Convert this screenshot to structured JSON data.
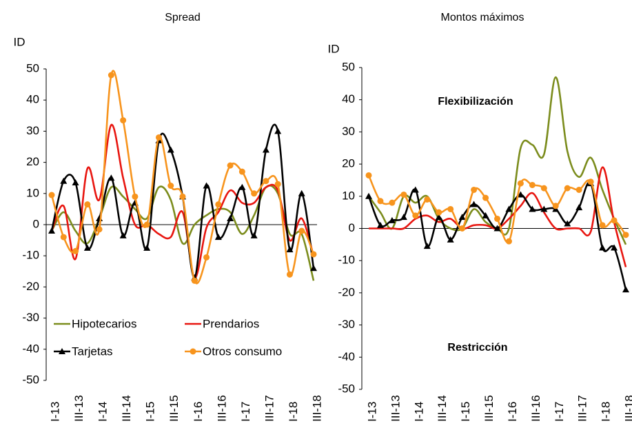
{
  "chart_data": [
    {
      "type": "line",
      "title": "Spread",
      "y_label": "ID",
      "categories": [
        "I-13",
        null,
        "III-13",
        null,
        "I-14",
        null,
        "III-14",
        null,
        "I-15",
        null,
        "III-15",
        null,
        "I-16",
        null,
        "III-16",
        null,
        "I-17",
        null,
        "III-17",
        null,
        "I-18",
        null,
        "III-18"
      ],
      "series": [
        {
          "name": "Hipotecarios",
          "color": "#7b8c1c",
          "marker": "none",
          "values": [
            -2,
            4,
            -2,
            -6,
            2,
            12,
            9,
            5,
            2,
            12,
            8,
            -6,
            0,
            3,
            5,
            4,
            -3,
            3,
            12,
            10,
            -3,
            -3,
            -18
          ]
        },
        {
          "name": "Prendarios",
          "color": "#e8150f",
          "marker": "none",
          "values": [
            -2,
            6,
            -11,
            18,
            8,
            32,
            15,
            0,
            0,
            -3,
            -4,
            4,
            -17,
            -1,
            4,
            11,
            7,
            7,
            12,
            11,
            -5,
            2,
            -10
          ]
        },
        {
          "name": "Tarjetas",
          "color": "#000000",
          "marker": "triangle",
          "values": [
            -2,
            14,
            13.5,
            -7.5,
            2,
            15,
            -3.5,
            7,
            -7.5,
            27,
            24,
            9,
            -17,
            12.5,
            -4,
            2,
            12,
            -3.5,
            24,
            30,
            -8,
            10,
            -14
          ]
        },
        {
          "name": "Otros consumo",
          "color": "#f7941d",
          "marker": "circle",
          "values": [
            9.5,
            -4,
            -8.5,
            6.5,
            -1.5,
            48,
            33.5,
            9,
            0,
            28,
            12.5,
            9,
            -18,
            -10.5,
            6.5,
            19,
            17,
            10,
            14,
            13,
            -16,
            -2,
            -9.5
          ]
        }
      ],
      "ylim": [
        -50,
        50
      ],
      "yticks": [
        -50,
        -40,
        -30,
        -20,
        -10,
        0,
        10,
        20,
        30,
        40,
        50
      ],
      "legend": "lower left"
    },
    {
      "type": "line",
      "title": "Montos máximos",
      "y_label": "ID",
      "categories": [
        "I-13",
        null,
        "III-13",
        null,
        "I-14",
        null,
        "III-14",
        null,
        "I-15",
        null,
        "III-15",
        null,
        "I-16",
        null,
        "III-16",
        null,
        "I-17",
        null,
        "III-17",
        null,
        "I-18",
        null,
        "III-18"
      ],
      "series": [
        {
          "name": "Hipotecarios",
          "color": "#7b8c1c",
          "marker": "none",
          "values": [
            10,
            5,
            0,
            10,
            8,
            10,
            3,
            0,
            0,
            6,
            2,
            0,
            0,
            25,
            26,
            23,
            47,
            24,
            16,
            22,
            12,
            3,
            -5
          ]
        },
        {
          "name": "Prendarios",
          "color": "#e8150f",
          "marker": "none",
          "values": [
            0,
            0,
            0,
            0,
            3,
            4,
            2,
            3,
            0,
            1,
            1,
            0,
            3,
            7,
            11,
            5,
            0,
            0,
            0,
            -1,
            19,
            2,
            -12
          ]
        },
        {
          "name": "Tarjetas",
          "color": "#000000",
          "marker": "triangle",
          "values": [
            10,
            1,
            2.5,
            3.5,
            12,
            -5.5,
            3.5,
            -3.5,
            3.5,
            7.5,
            4,
            0,
            6,
            10.5,
            6,
            6,
            6,
            1.5,
            6.5,
            14,
            -6,
            -6,
            -19
          ]
        },
        {
          "name": "Otros consumo",
          "color": "#f7941d",
          "marker": "circle",
          "values": [
            16.5,
            8.5,
            8,
            10.5,
            4,
            9,
            5,
            6,
            0,
            12,
            9.5,
            3,
            -4,
            14,
            13.5,
            12.5,
            7,
            12.5,
            12,
            14.5,
            1,
            2.5,
            -2
          ]
        }
      ],
      "annotations": [
        "Flexibilización",
        "Restricción"
      ],
      "ylim": [
        -50,
        50
      ],
      "yticks": [
        -50,
        -40,
        -30,
        -20,
        -10,
        0,
        10,
        20,
        30,
        40,
        50
      ],
      "legend": false
    }
  ]
}
